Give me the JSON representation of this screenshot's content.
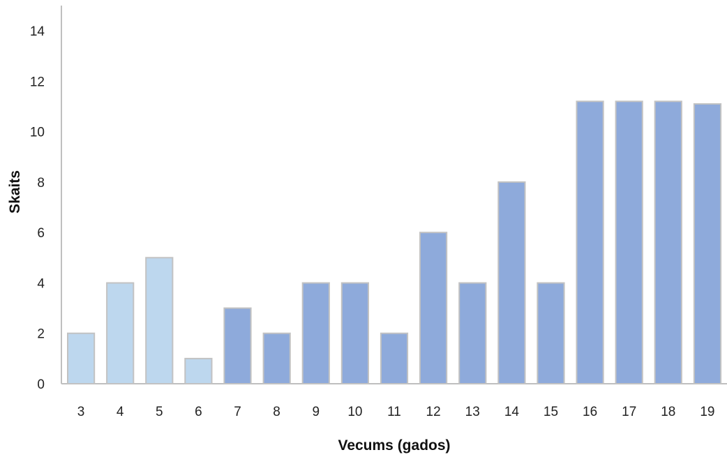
{
  "chart_data": {
    "type": "bar",
    "title": "",
    "xlabel": "Vecums (gados)",
    "ylabel": "Skaits",
    "ylim": [
      0,
      15
    ],
    "yticks": [
      0,
      2,
      4,
      6,
      8,
      10,
      12,
      14
    ],
    "grid": false,
    "legend": "none",
    "categories": [
      "3",
      "4",
      "5",
      "6",
      "7",
      "8",
      "9",
      "10",
      "11",
      "12",
      "13",
      "14",
      "15",
      "16",
      "17",
      "18",
      "19"
    ],
    "values": [
      2,
      4,
      5,
      1,
      3,
      2,
      4,
      4,
      2,
      6,
      4,
      8,
      4,
      11.2,
      11.2,
      11.2,
      11.1
    ],
    "colors": {
      "light_bars": "#bdd7ee",
      "dark_bars": "#8eaadb",
      "bar_border": "#c2c2c2",
      "axis": "#bfbfbf"
    },
    "light_bar_categories": [
      "3",
      "4",
      "5",
      "6"
    ]
  }
}
